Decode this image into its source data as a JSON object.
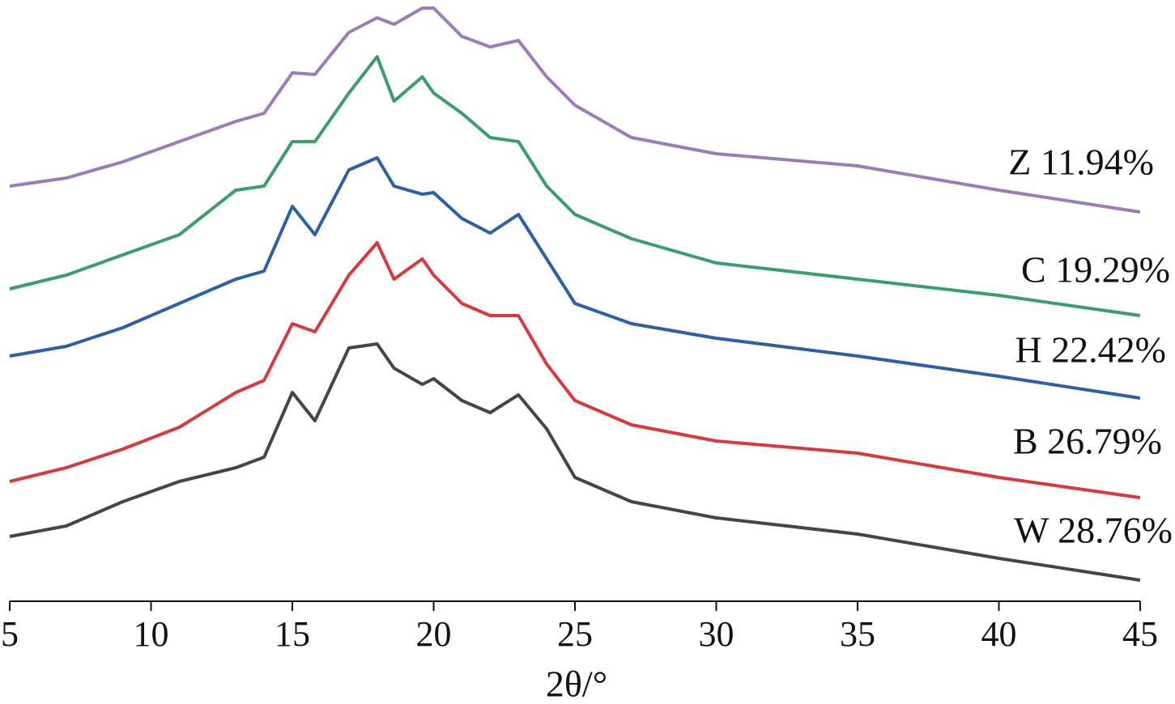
{
  "chart_data": {
    "type": "line",
    "xlabel": "2θ/°",
    "x": [
      5,
      7,
      9,
      11,
      13,
      14,
      15,
      15.8,
      17,
      18,
      18.6,
      19.6,
      20,
      21,
      22,
      23,
      24,
      25,
      27,
      30,
      35,
      40,
      45
    ],
    "series": [
      {
        "name": "Z 11.94%",
        "color": "#9b7bb8",
        "values": [
          513,
          523,
          543,
          568,
          593,
          603,
          653,
          651,
          703,
          721,
          713,
          733,
          733,
          698,
          685,
          693,
          648,
          613,
          573,
          553,
          538,
          508,
          481
        ]
      },
      {
        "name": "C 19.29%",
        "color": "#3a9e6a",
        "values": [
          386,
          403,
          428,
          453,
          508,
          513,
          568,
          568,
          628,
          673,
          618,
          648,
          628,
          603,
          573,
          568,
          513,
          478,
          448,
          418,
          398,
          378,
          353
        ]
      },
      {
        "name": "H 22.42%",
        "color": "#2b5fa8",
        "values": [
          303,
          315,
          338,
          368,
          398,
          408,
          488,
          453,
          533,
          548,
          513,
          503,
          505,
          473,
          455,
          478,
          423,
          368,
          343,
          325,
          303,
          278,
          251
        ]
      },
      {
        "name": "B 26.79%",
        "color": "#d9393e",
        "values": [
          148,
          165,
          188,
          215,
          258,
          273,
          343,
          333,
          403,
          443,
          398,
          423,
          403,
          368,
          353,
          353,
          293,
          248,
          218,
          198,
          183,
          153,
          128
        ]
      },
      {
        "name": "W 28.76%",
        "color": "#454545",
        "values": [
          80,
          93,
          123,
          148,
          165,
          178,
          258,
          223,
          313,
          318,
          288,
          268,
          275,
          248,
          233,
          255,
          213,
          153,
          123,
          103,
          83,
          53,
          26
        ]
      }
    ],
    "xlim": [
      5,
      45
    ],
    "xticks": [
      5,
      10,
      15,
      20,
      25,
      30,
      35,
      40,
      45
    ],
    "ylim": [
      0,
      743
    ]
  }
}
